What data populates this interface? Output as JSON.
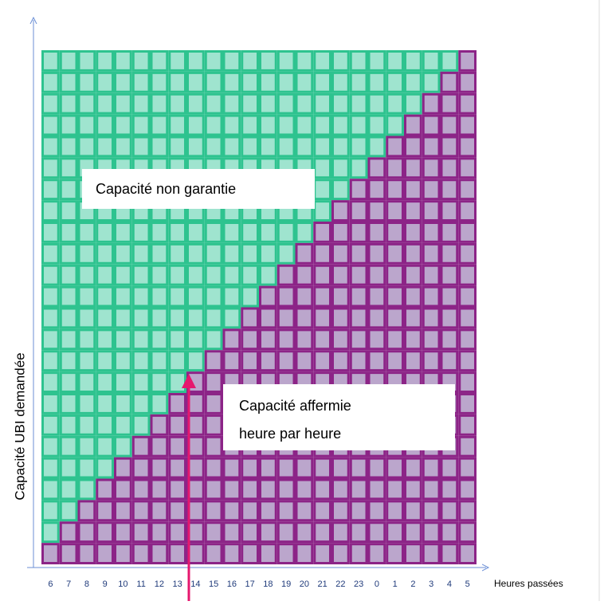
{
  "diagram": {
    "y_axis_label": "Capacité UBI demandée",
    "x_axis_label": "Heures passées",
    "hours": [
      "6",
      "7",
      "8",
      "9",
      "10",
      "11",
      "12",
      "13",
      "14",
      "15",
      "16",
      "17",
      "18",
      "19",
      "20",
      "21",
      "22",
      "23",
      "0",
      "1",
      "2",
      "3",
      "4",
      "5"
    ],
    "upper_region_label": "Capacité non garantie",
    "lower_region_label_lines": [
      "Capacité affermie",
      "heure par heure"
    ]
  }
}
